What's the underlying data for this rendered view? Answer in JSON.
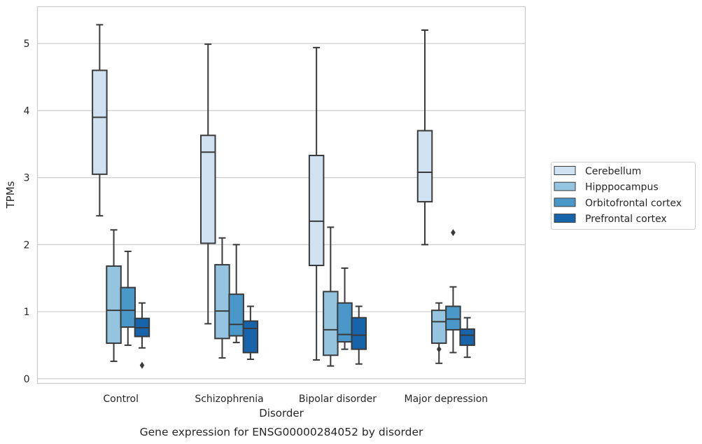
{
  "chart_data": {
    "type": "box",
    "caption": "Gene expression for ENSG00000284052 by disorder",
    "xlabel": "Disorder",
    "ylabel": "TPMs",
    "ylim": [
      -0.07,
      5.55
    ],
    "yticks": [
      0,
      1,
      2,
      3,
      4,
      5
    ],
    "grid": true,
    "legend_position": "right",
    "categories": [
      "Control",
      "Schizophrenia",
      "Bipolar disorder",
      "Major depression"
    ],
    "series": [
      {
        "name": "Cerebellum",
        "color": "#d0e1f2",
        "boxes": [
          {
            "whislo": 2.43,
            "q1": 3.05,
            "med": 3.9,
            "q3": 4.6,
            "whishi": 5.28,
            "fliers": []
          },
          {
            "whislo": 0.82,
            "q1": 2.02,
            "med": 3.38,
            "q3": 3.63,
            "whishi": 4.99,
            "fliers": []
          },
          {
            "whislo": 0.28,
            "q1": 1.69,
            "med": 2.35,
            "q3": 3.33,
            "whishi": 4.94,
            "fliers": []
          },
          {
            "whislo": 2.0,
            "q1": 2.64,
            "med": 3.08,
            "q3": 3.7,
            "whishi": 5.2,
            "fliers": []
          }
        ]
      },
      {
        "name": "Hipppocampus",
        "color": "#94c4df",
        "boxes": [
          {
            "whislo": 0.26,
            "q1": 0.53,
            "med": 1.02,
            "q3": 1.68,
            "whishi": 2.22,
            "fliers": []
          },
          {
            "whislo": 0.31,
            "q1": 0.6,
            "med": 1.01,
            "q3": 1.7,
            "whishi": 2.1,
            "fliers": []
          },
          {
            "whislo": 0.19,
            "q1": 0.35,
            "med": 0.73,
            "q3": 1.3,
            "whishi": 2.26,
            "fliers": []
          },
          {
            "whislo": 0.23,
            "q1": 0.53,
            "med": 0.85,
            "q3": 1.02,
            "whishi": 1.13,
            "fliers": [
              0.44
            ]
          }
        ]
      },
      {
        "name": "Orbitofrontal cortex",
        "color": "#4a98c9",
        "boxes": [
          {
            "whislo": 0.5,
            "q1": 0.77,
            "med": 1.02,
            "q3": 1.36,
            "whishi": 1.9,
            "fliers": []
          },
          {
            "whislo": 0.54,
            "q1": 0.64,
            "med": 0.81,
            "q3": 1.26,
            "whishi": 2.0,
            "fliers": []
          },
          {
            "whislo": 0.44,
            "q1": 0.55,
            "med": 0.66,
            "q3": 1.13,
            "whishi": 1.65,
            "fliers": []
          },
          {
            "whislo": 0.39,
            "q1": 0.73,
            "med": 0.89,
            "q3": 1.08,
            "whishi": 1.37,
            "fliers": [
              2.18
            ]
          }
        ]
      },
      {
        "name": "Prefrontal cortex",
        "color": "#1764ab",
        "boxes": [
          {
            "whislo": 0.46,
            "q1": 0.63,
            "med": 0.76,
            "q3": 0.9,
            "whishi": 1.13,
            "fliers": [
              0.2
            ]
          },
          {
            "whislo": 0.29,
            "q1": 0.39,
            "med": 0.75,
            "q3": 0.86,
            "whishi": 1.08,
            "fliers": []
          },
          {
            "whislo": 0.22,
            "q1": 0.44,
            "med": 0.65,
            "q3": 0.91,
            "whishi": 1.08,
            "fliers": []
          },
          {
            "whislo": 0.32,
            "q1": 0.5,
            "med": 0.65,
            "q3": 0.74,
            "whishi": 0.91,
            "fliers": []
          }
        ]
      }
    ]
  }
}
